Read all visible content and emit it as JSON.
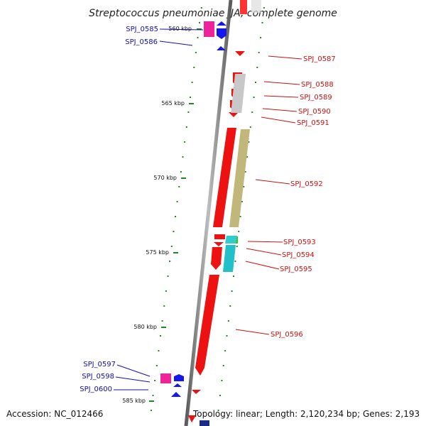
{
  "title": "Streptococcus pneumoniae JJA, complete genome",
  "footer": {
    "accession": "Accession: NC_012466",
    "summary": "Topology: linear; Length: 2,120,234 bp; Genes: 2,193"
  },
  "ruler": [
    {
      "label": "560 kbp"
    },
    {
      "label": "565 kbp"
    },
    {
      "label": "570 kbp"
    },
    {
      "label": "575 kbp"
    },
    {
      "label": "580 kbp"
    },
    {
      "label": "585 kbp"
    }
  ],
  "genes_left": [
    {
      "label": "SPJ_0585"
    },
    {
      "label": "SPJ_0586"
    },
    {
      "label": "SPJ_0597"
    },
    {
      "label": "SPJ_0598"
    },
    {
      "label": "SPJ_0600"
    }
  ],
  "genes_right": [
    {
      "label": "SPJ_0587"
    },
    {
      "label": "SPJ_0588"
    },
    {
      "label": "SPJ_0589"
    },
    {
      "label": "SPJ_0590"
    },
    {
      "label": "SPJ_0591"
    },
    {
      "label": "SPJ_0592"
    },
    {
      "label": "SPJ_0593"
    },
    {
      "label": "SPJ_0594"
    },
    {
      "label": "SPJ_0595"
    },
    {
      "label": "SPJ_0596"
    }
  ],
  "colors": {
    "forward_label": "#1010aa",
    "reverse_label": "#cc1111",
    "axis": "#888888",
    "tick": "#228822"
  }
}
